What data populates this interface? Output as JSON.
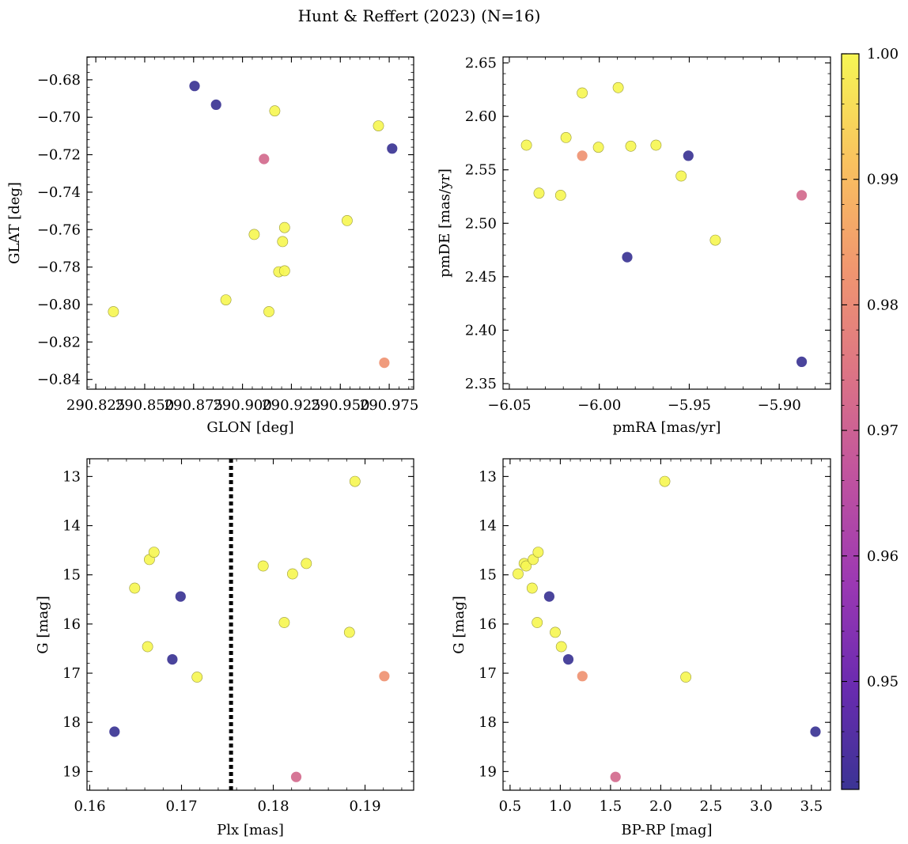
{
  "figure": {
    "title": "Hunt & Reffert (2023) (N=16)"
  },
  "colorbar": {
    "range": [
      0.9414,
      1.0
    ],
    "ticks": [
      0.95,
      0.96,
      0.97,
      0.98,
      0.99,
      1.0
    ],
    "tick_labels": [
      "0.95",
      "0.96",
      "0.97",
      "0.98",
      "0.99",
      "1.00"
    ]
  },
  "chart_data": [
    {
      "type": "scatter",
      "id": "glon-glat",
      "xlabel": "GLON [deg]",
      "ylabel": "GLAT [deg]",
      "xlim": [
        290.8205,
        290.9875
      ],
      "ylim": [
        -0.8452,
        -0.6678
      ],
      "y_inverted": false,
      "xticks": [
        290.825,
        290.85,
        290.875,
        290.9,
        290.925,
        290.95,
        290.975
      ],
      "xtick_labels": [
        "290.825",
        "290.850",
        "290.875",
        "290.900",
        "290.925",
        "290.950",
        "290.975"
      ],
      "xminor": 0.005,
      "yticks": [
        -0.84,
        -0.82,
        -0.8,
        -0.78,
        -0.76,
        -0.74,
        -0.72,
        -0.7,
        -0.68
      ],
      "ytick_labels": [
        "−0.84",
        "−0.82",
        "−0.80",
        "−0.78",
        "−0.76",
        "−0.74",
        "−0.72",
        "−0.70",
        "−0.68"
      ],
      "yminor": 0.004,
      "x": [
        290.834,
        290.8755,
        290.8865,
        290.8915,
        290.911,
        290.9165,
        290.906,
        290.9135,
        290.9185,
        290.9205,
        290.9215,
        290.9215,
        290.9535,
        290.9695,
        290.9725,
        290.9765
      ],
      "y": [
        -0.8038,
        -0.6833,
        -0.6933,
        -0.7975,
        -0.7223,
        -0.6966,
        -0.7626,
        -0.8038,
        -0.7825,
        -0.7664,
        -0.7589,
        -0.782,
        -0.7552,
        -0.7046,
        -0.8311,
        -0.7167
      ],
      "c": [
        1.0,
        0.9414,
        0.9414,
        1.0,
        0.972,
        1.0,
        1.0,
        1.0,
        1.0,
        1.0,
        1.0,
        1.0,
        1.0,
        1.0,
        0.982,
        0.9414
      ]
    },
    {
      "type": "scatter",
      "id": "pmra-pmde",
      "xlabel": "pmRA [mas/yr]",
      "ylabel": "pmDE [mas/yr]",
      "xlim": [
        -6.0535,
        -5.8715
      ],
      "ylim": [
        2.3448,
        2.6556
      ],
      "y_inverted": false,
      "xticks": [
        -6.05,
        -6.0,
        -5.95,
        -5.9
      ],
      "xtick_labels": [
        "−6.05",
        "−6.00",
        "−5.95",
        "−5.90"
      ],
      "xminor": 0.01,
      "yticks": [
        2.35,
        2.4,
        2.45,
        2.5,
        2.55,
        2.6,
        2.65
      ],
      "ytick_labels": [
        "2.35",
        "2.40",
        "2.45",
        "2.50",
        "2.55",
        "2.60",
        "2.65"
      ],
      "yminor": 0.01,
      "x": [
        -6.0405,
        -6.0335,
        -6.0215,
        -6.0185,
        -6.0095,
        -6.0095,
        -6.0005,
        -5.9895,
        -5.9845,
        -5.9825,
        -5.9685,
        -5.9545,
        -5.9505,
        -5.9355,
        -5.8875,
        -5.8875
      ],
      "y": [
        2.5731,
        2.5282,
        2.5262,
        2.5802,
        2.6219,
        2.5632,
        2.5711,
        2.6269,
        2.4683,
        2.5721,
        2.5731,
        2.5442,
        2.5632,
        2.4842,
        2.5262,
        2.3704
      ],
      "c": [
        1.0,
        1.0,
        1.0,
        1.0,
        1.0,
        0.982,
        1.0,
        1.0,
        0.9414,
        1.0,
        1.0,
        1.0,
        0.9414,
        1.0,
        0.972,
        0.9414
      ]
    },
    {
      "type": "scatter",
      "id": "plx-g",
      "xlabel": "Plx [mas]",
      "ylabel": "G [mag]",
      "xlim": [
        0.1597,
        0.1953
      ],
      "ylim": [
        12.64,
        19.38
      ],
      "y_inverted": true,
      "xticks": [
        0.16,
        0.17,
        0.18,
        0.19
      ],
      "xtick_labels": [
        "0.16",
        "0.17",
        "0.18",
        "0.19"
      ],
      "xminor": 0.002,
      "yticks": [
        13,
        14,
        15,
        16,
        17,
        18,
        19
      ],
      "ytick_labels": [
        "13",
        "14",
        "15",
        "16",
        "17",
        "18",
        "19"
      ],
      "yminor": 0.2,
      "vline": 0.1754,
      "x": [
        0.1627,
        0.1649,
        0.1663,
        0.1665,
        0.167,
        0.1699,
        0.169,
        0.1717,
        0.1789,
        0.1812,
        0.1821,
        0.1836,
        0.1825,
        0.1883,
        0.1889,
        0.1921
      ],
      "y": [
        18.19,
        15.27,
        16.46,
        14.69,
        14.54,
        15.44,
        16.72,
        17.08,
        14.82,
        15.97,
        14.98,
        14.77,
        19.11,
        16.17,
        13.1,
        17.06
      ],
      "c": [
        0.9414,
        1.0,
        1.0,
        1.0,
        1.0,
        0.9414,
        0.9414,
        1.0,
        1.0,
        1.0,
        1.0,
        1.0,
        0.972,
        1.0,
        1.0,
        0.982
      ]
    },
    {
      "type": "scatter",
      "id": "bprp-g",
      "xlabel": "BP-RP [mag]",
      "ylabel": "G [mag]",
      "xlim": [
        0.43,
        3.69
      ],
      "ylim": [
        12.64,
        19.38
      ],
      "y_inverted": true,
      "xticks": [
        0.5,
        1.0,
        1.5,
        2.0,
        2.5,
        3.0,
        3.5
      ],
      "xtick_labels": [
        "0.5",
        "1.0",
        "1.5",
        "2.0",
        "2.5",
        "3.0",
        "3.5"
      ],
      "xminor": 0.1,
      "yticks": [
        13,
        14,
        15,
        16,
        17,
        18,
        19
      ],
      "ytick_labels": [
        "13",
        "14",
        "15",
        "16",
        "17",
        "18",
        "19"
      ],
      "yminor": 0.2,
      "x": [
        0.58,
        0.64,
        0.66,
        0.72,
        0.73,
        0.78,
        0.77,
        0.89,
        0.95,
        1.01,
        1.08,
        1.22,
        1.55,
        2.04,
        2.25,
        3.54
      ],
      "y": [
        14.98,
        14.77,
        14.82,
        15.27,
        14.69,
        14.54,
        15.97,
        15.44,
        16.17,
        16.46,
        16.72,
        17.06,
        19.11,
        13.1,
        17.08,
        18.19
      ],
      "c": [
        1.0,
        1.0,
        1.0,
        1.0,
        1.0,
        1.0,
        1.0,
        0.9414,
        1.0,
        1.0,
        0.9414,
        0.982,
        0.972,
        1.0,
        1.0,
        0.9414
      ]
    }
  ]
}
